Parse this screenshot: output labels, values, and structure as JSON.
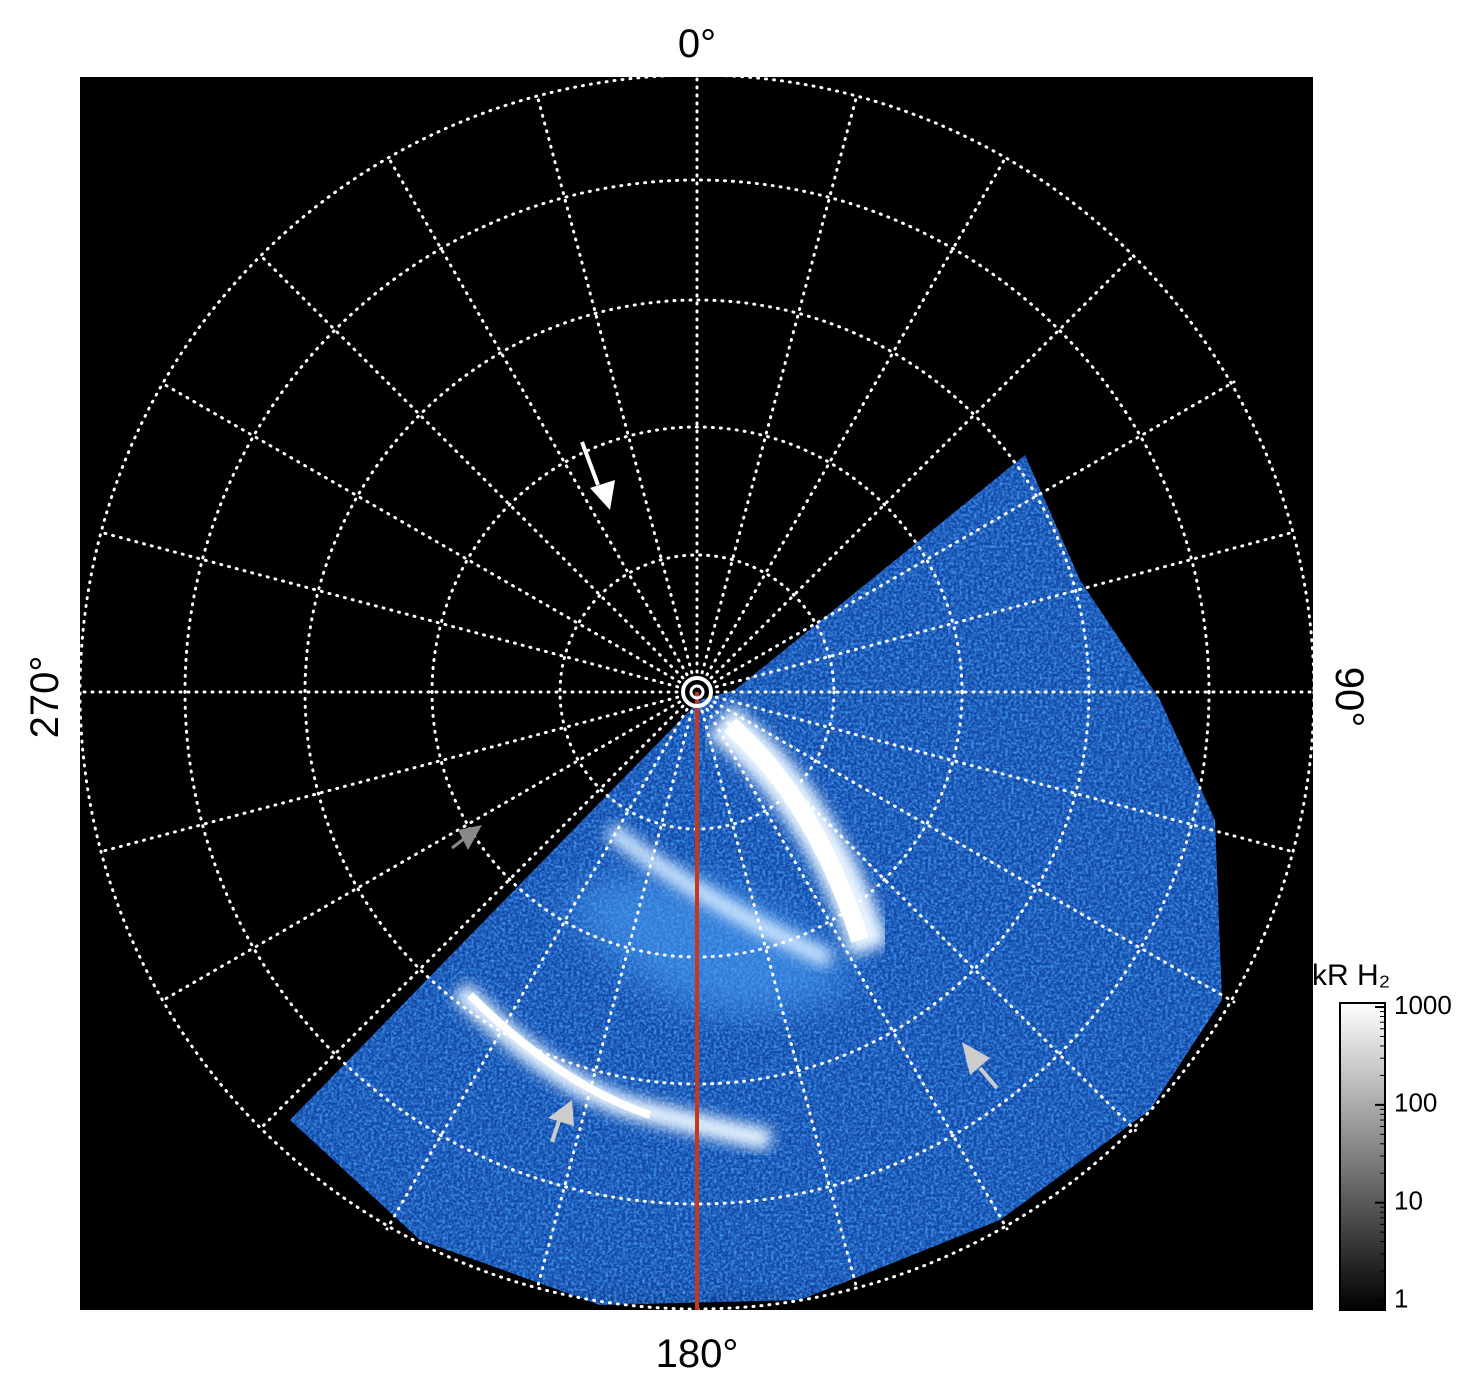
{
  "labels": {
    "top": "0°",
    "right": "90°",
    "bottom": "180°",
    "left": "270°"
  },
  "colorbar": {
    "title": "kR H₂",
    "scale": "log",
    "lim": [
      0.8,
      1100
    ],
    "ticks": [
      1,
      10,
      100,
      1000
    ]
  }
}
